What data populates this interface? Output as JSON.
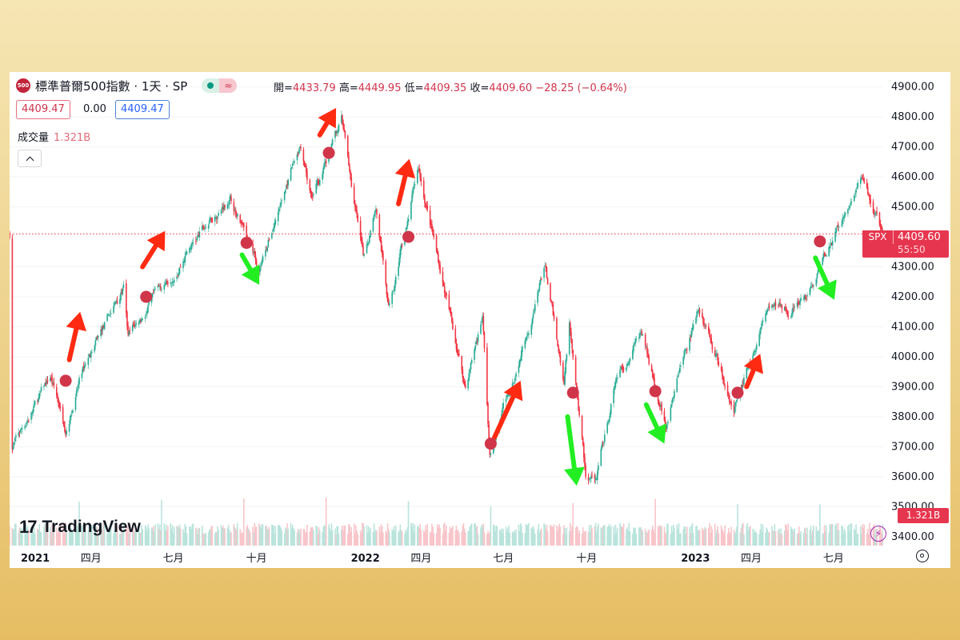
{
  "header": {
    "symbol_badge": "500",
    "title": "標準普爾500指數 · 1天 · SP",
    "status_approx_icon": "≈",
    "ohlc": {
      "open_label": "開=",
      "open": "4433.79",
      "high_label": "高=",
      "high": "4449.95",
      "low_label": "低=",
      "low": "4409.35",
      "close_label": "收=",
      "close": "4409.60",
      "change": "−28.25 (−0.64%)"
    },
    "bid": "4409.47",
    "spread": "0.00",
    "ask": "4409.47",
    "volume_label": "成交量",
    "volume_value": "1.321B"
  },
  "branding": {
    "logo_mark": "17",
    "logo_text": "TradingView"
  },
  "price_tag": {
    "symbol": "SPX",
    "last": "4409.60",
    "countdown": "55:50"
  },
  "volume_tag": "1.321B",
  "icons": {
    "flash": "⚡"
  },
  "colors": {
    "up": "#22ab94",
    "down": "#f23645",
    "up_wick": "#7cc8b8",
    "arrow_up": "#ff2a12",
    "arrow_down": "#22ee22",
    "marker": "#d0354a",
    "price_line": "#f23645",
    "axis_text": "#131722"
  },
  "chart_data": {
    "type": "candlestick",
    "x_range": [
      "2021-01-01",
      "2023-08-25"
    ],
    "ylim": [
      3370,
      4950
    ],
    "y_ticks": [
      3400,
      3500,
      3600,
      3700,
      3800,
      3900,
      4000,
      4100,
      4200,
      4300,
      4400,
      4500,
      4600,
      4700,
      4800,
      4900
    ],
    "y_tick_labels": [
      "3400.00",
      "3500.00",
      "3600.00",
      "3700.00",
      "3800.00",
      "3900.00",
      "4000.00",
      "4100.00",
      "4200.00",
      "4300.00",
      "4400.00",
      "4500.00",
      "4600.00",
      "4700.00",
      "4800.00",
      "4900.00"
    ],
    "x_ticks": [
      {
        "date": "2021-01-01",
        "label": "2021",
        "bold": true
      },
      {
        "date": "2021-04-01",
        "label": "四月",
        "bold": false
      },
      {
        "date": "2021-07-01",
        "label": "七月",
        "bold": false
      },
      {
        "date": "2021-10-01",
        "label": "十月",
        "bold": false
      },
      {
        "date": "2022-01-01",
        "label": "2022",
        "bold": true
      },
      {
        "date": "2022-04-01",
        "label": "四月",
        "bold": false
      },
      {
        "date": "2022-07-01",
        "label": "七月",
        "bold": false
      },
      {
        "date": "2022-10-01",
        "label": "十月",
        "bold": false
      },
      {
        "date": "2023-01-01",
        "label": "2023",
        "bold": true
      },
      {
        "date": "2023-04-01",
        "label": "四月",
        "bold": false
      },
      {
        "date": "2023-07-01",
        "label": "七月",
        "bold": false
      }
    ],
    "last_price": 4409.6,
    "price_path": [
      [
        "2021-01-04",
        3700
      ],
      [
        "2021-02-15",
        3930
      ],
      [
        "2021-03-04",
        3770
      ],
      [
        "2021-03-26",
        3980
      ],
      [
        "2021-05-07",
        4230
      ],
      [
        "2021-05-12",
        4060
      ],
      [
        "2021-07-15",
        4350
      ],
      [
        "2021-09-02",
        4535
      ],
      [
        "2021-10-04",
        4300
      ],
      [
        "2021-11-18",
        4700
      ],
      [
        "2021-12-01",
        4510
      ],
      [
        "2022-01-03",
        4795
      ],
      [
        "2022-01-27",
        4320
      ],
      [
        "2022-02-10",
        4500
      ],
      [
        "2022-02-24",
        4170
      ],
      [
        "2022-03-29",
        4630
      ],
      [
        "2022-05-20",
        3900
      ],
      [
        "2022-06-08",
        4140
      ],
      [
        "2022-06-16",
        3660
      ],
      [
        "2022-08-16",
        4300
      ],
      [
        "2022-09-06",
        3910
      ],
      [
        "2022-09-12",
        4110
      ],
      [
        "2022-09-30",
        3600
      ],
      [
        "2022-10-12",
        3580
      ],
      [
        "2022-11-01",
        3900
      ],
      [
        "2022-11-30",
        4080
      ],
      [
        "2022-12-28",
        3780
      ],
      [
        "2023-02-02",
        4180
      ],
      [
        "2023-03-13",
        3820
      ],
      [
        "2023-04-18",
        4150
      ],
      [
        "2023-05-31",
        4180
      ],
      [
        "2023-07-31",
        4590
      ],
      [
        "2023-08-25",
        4410
      ]
    ],
    "volume": {
      "unit": "B",
      "last": 1.321,
      "baseline": 2.1,
      "spike_dates": [
        "2021-03-19",
        "2021-06-18",
        "2021-09-17",
        "2021-12-17",
        "2022-03-18",
        "2022-06-17",
        "2022-09-16",
        "2022-12-16",
        "2023-03-17",
        "2023-06-16"
      ]
    },
    "annotations": {
      "markers": [
        {
          "date": "2021-03-04",
          "price": 3920
        },
        {
          "date": "2021-06-01",
          "price": 4200
        },
        {
          "date": "2021-09-20",
          "price": 4380
        },
        {
          "date": "2021-12-20",
          "price": 4680
        },
        {
          "date": "2022-03-18",
          "price": 4400
        },
        {
          "date": "2022-06-17",
          "price": 3710
        },
        {
          "date": "2022-09-16",
          "price": 3880
        },
        {
          "date": "2022-12-16",
          "price": 3885
        },
        {
          "date": "2023-03-17",
          "price": 3880
        },
        {
          "date": "2023-06-16",
          "price": 4385
        }
      ],
      "up_arrows": [
        {
          "from": [
            "2021-03-08",
            3990
          ],
          "to": [
            "2021-03-20",
            4150
          ]
        },
        {
          "from": [
            "2021-05-28",
            4300
          ],
          "to": [
            "2021-06-22",
            4420
          ]
        },
        {
          "from": [
            "2021-12-10",
            4740
          ],
          "to": [
            "2021-12-28",
            4830
          ]
        },
        {
          "from": [
            "2022-03-07",
            4510
          ],
          "to": [
            "2022-03-19",
            4660
          ]
        },
        {
          "from": [
            "2022-06-21",
            3730
          ],
          "to": [
            "2022-07-20",
            3920
          ]
        },
        {
          "from": [
            "2023-03-27",
            3900
          ],
          "to": [
            "2023-04-11",
            4010
          ]
        }
      ],
      "down_arrows": [
        {
          "from": [
            "2021-09-15",
            4340
          ],
          "to": [
            "2021-10-04",
            4240
          ]
        },
        {
          "from": [
            "2022-09-10",
            3800
          ],
          "to": [
            "2022-09-20",
            3570
          ]
        },
        {
          "from": [
            "2022-12-06",
            3840
          ],
          "to": [
            "2022-12-26",
            3710
          ]
        },
        {
          "from": [
            "2023-06-11",
            4330
          ],
          "to": [
            "2023-07-02",
            4190
          ]
        }
      ]
    }
  }
}
